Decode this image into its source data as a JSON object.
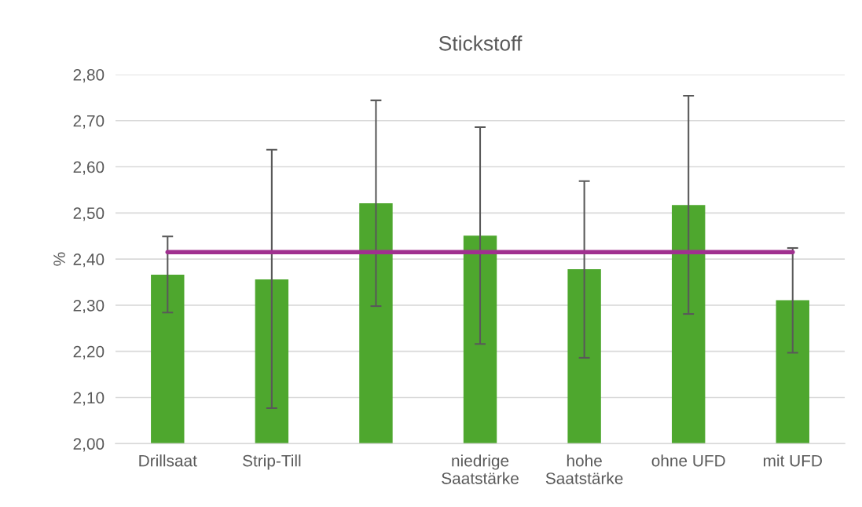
{
  "chart_data": {
    "type": "bar",
    "title": "Stickstoff",
    "ylabel": "%",
    "categories": [
      "Drillsaat",
      "Strip-Till",
      null,
      "niedrige\nSaatstärke",
      "hohe\nSaatstärke",
      "ohne UFD",
      "mit UFD"
    ],
    "series": [
      {
        "color": "#4ea72e",
        "values": [
          2.366,
          2.356,
          2.521,
          2.451,
          2.378,
          2.517,
          2.311
        ],
        "errors": [
          [
            2.284,
            2.449
          ],
          [
            2.077,
            2.637
          ],
          [
            2.298,
            2.744
          ],
          [
            2.216,
            2.686
          ],
          [
            2.186,
            2.569
          ],
          [
            2.281,
            2.754
          ],
          [
            2.197,
            2.424
          ]
        ]
      },
      {
        "type": "line",
        "color": "#a0308f",
        "values": [
          2.415,
          2.415,
          2.415,
          2.415,
          2.415,
          2.415,
          2.415
        ]
      }
    ],
    "ylim": [
      2.0,
      2.8
    ],
    "yticks": [
      {
        "value": 2.0,
        "label": "2,00"
      },
      {
        "value": 2.1,
        "label": "2,10"
      },
      {
        "value": 2.2,
        "label": "2,20"
      },
      {
        "value": 2.3,
        "label": "2,30"
      },
      {
        "value": 2.4,
        "label": "2,40"
      },
      {
        "value": 2.5,
        "label": "2,50"
      },
      {
        "value": 2.6,
        "label": "2,60"
      },
      {
        "value": 2.7,
        "label": "2,70"
      },
      {
        "value": 2.8,
        "label": "2,80"
      }
    ],
    "grid": "y"
  }
}
